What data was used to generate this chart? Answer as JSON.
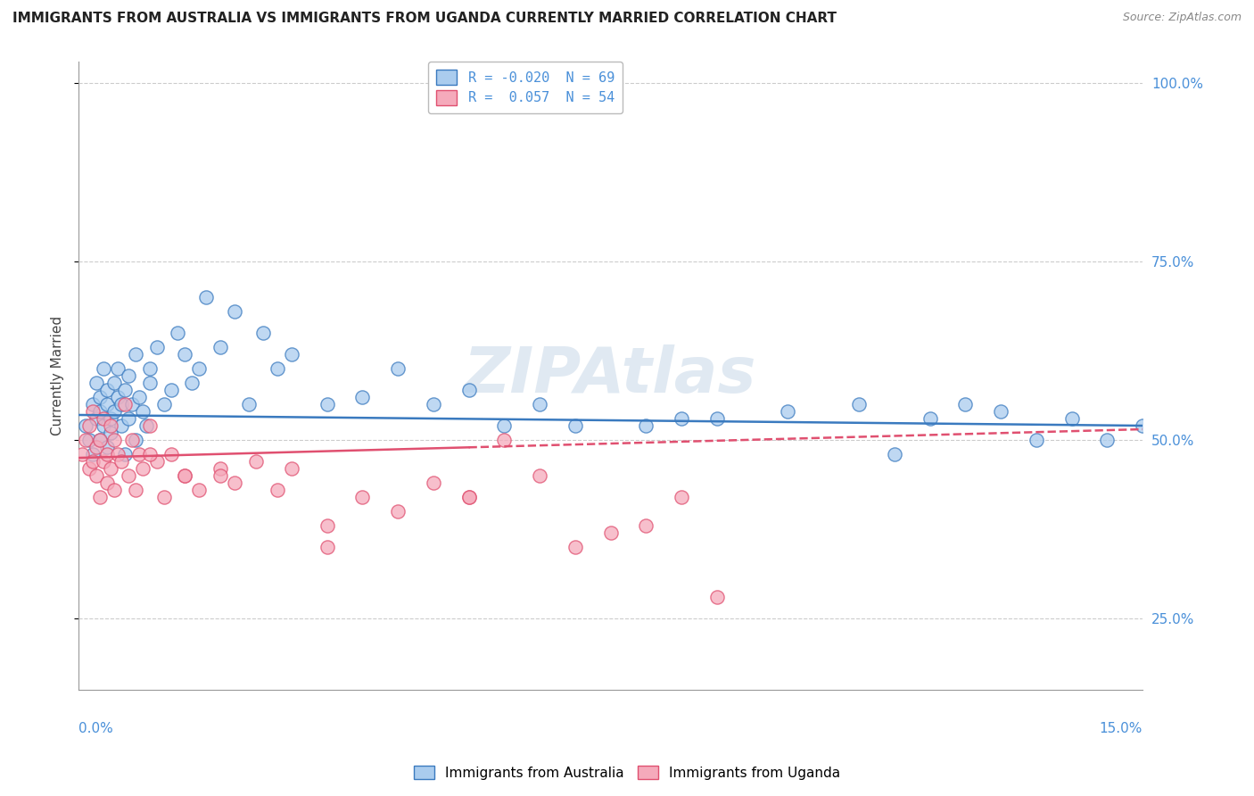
{
  "title": "IMMIGRANTS FROM AUSTRALIA VS IMMIGRANTS FROM UGANDA CURRENTLY MARRIED CORRELATION CHART",
  "source": "Source: ZipAtlas.com",
  "ylabel": "Currently Married",
  "xmin": 0.0,
  "xmax": 15.0,
  "ymin": 15.0,
  "ymax": 103.0,
  "r_australia": -0.02,
  "n_australia": 69,
  "r_uganda": 0.057,
  "n_uganda": 54,
  "color_australia": "#aaccee",
  "color_uganda": "#f5aabb",
  "trendline_australia": "#3a7abf",
  "trendline_uganda": "#e05070",
  "watermark": "ZIPAtlas",
  "aus_x": [
    0.1,
    0.15,
    0.2,
    0.2,
    0.25,
    0.25,
    0.3,
    0.3,
    0.3,
    0.35,
    0.35,
    0.4,
    0.4,
    0.4,
    0.45,
    0.45,
    0.5,
    0.5,
    0.55,
    0.55,
    0.6,
    0.6,
    0.65,
    0.65,
    0.7,
    0.7,
    0.75,
    0.8,
    0.8,
    0.85,
    0.9,
    0.95,
    1.0,
    1.0,
    1.1,
    1.2,
    1.3,
    1.4,
    1.5,
    1.6,
    1.7,
    1.8,
    2.0,
    2.2,
    2.4,
    2.6,
    2.8,
    3.0,
    3.5,
    4.0,
    4.5,
    5.0,
    5.5,
    6.0,
    6.5,
    7.0,
    8.0,
    8.5,
    9.0,
    10.0,
    11.0,
    12.0,
    13.0,
    14.0,
    14.5,
    15.0,
    11.5,
    12.5,
    13.5
  ],
  "aus_y": [
    52,
    50,
    48,
    55,
    53,
    58,
    54,
    56,
    50,
    60,
    52,
    57,
    49,
    55,
    53,
    51,
    58,
    54,
    56,
    60,
    52,
    55,
    48,
    57,
    53,
    59,
    55,
    62,
    50,
    56,
    54,
    52,
    58,
    60,
    63,
    55,
    57,
    65,
    62,
    58,
    60,
    70,
    63,
    68,
    55,
    65,
    60,
    62,
    55,
    56,
    60,
    55,
    57,
    52,
    55,
    52,
    52,
    53,
    53,
    54,
    55,
    53,
    54,
    53,
    50,
    52,
    48,
    55,
    50
  ],
  "uga_x": [
    0.05,
    0.1,
    0.15,
    0.15,
    0.2,
    0.2,
    0.25,
    0.25,
    0.3,
    0.3,
    0.35,
    0.35,
    0.4,
    0.4,
    0.45,
    0.45,
    0.5,
    0.5,
    0.55,
    0.6,
    0.65,
    0.7,
    0.75,
    0.8,
    0.85,
    0.9,
    1.0,
    1.1,
    1.2,
    1.3,
    1.5,
    1.7,
    2.0,
    2.2,
    2.5,
    2.8,
    3.0,
    3.5,
    4.0,
    4.5,
    5.0,
    5.5,
    6.0,
    6.5,
    7.0,
    7.5,
    8.0,
    8.5,
    9.0,
    1.0,
    1.5,
    2.0,
    3.5,
    5.5
  ],
  "uga_y": [
    48,
    50,
    46,
    52,
    47,
    54,
    49,
    45,
    42,
    50,
    47,
    53,
    48,
    44,
    46,
    52,
    43,
    50,
    48,
    47,
    55,
    45,
    50,
    43,
    48,
    46,
    52,
    47,
    42,
    48,
    45,
    43,
    46,
    44,
    47,
    43,
    46,
    38,
    42,
    40,
    44,
    42,
    50,
    45,
    35,
    37,
    38,
    42,
    28,
    48,
    45,
    45,
    35,
    42
  ],
  "trendline_aus_y0": 53.5,
  "trendline_aus_y1": 52.0,
  "trendline_uga_y0": 47.5,
  "trendline_uga_y1": 51.5
}
